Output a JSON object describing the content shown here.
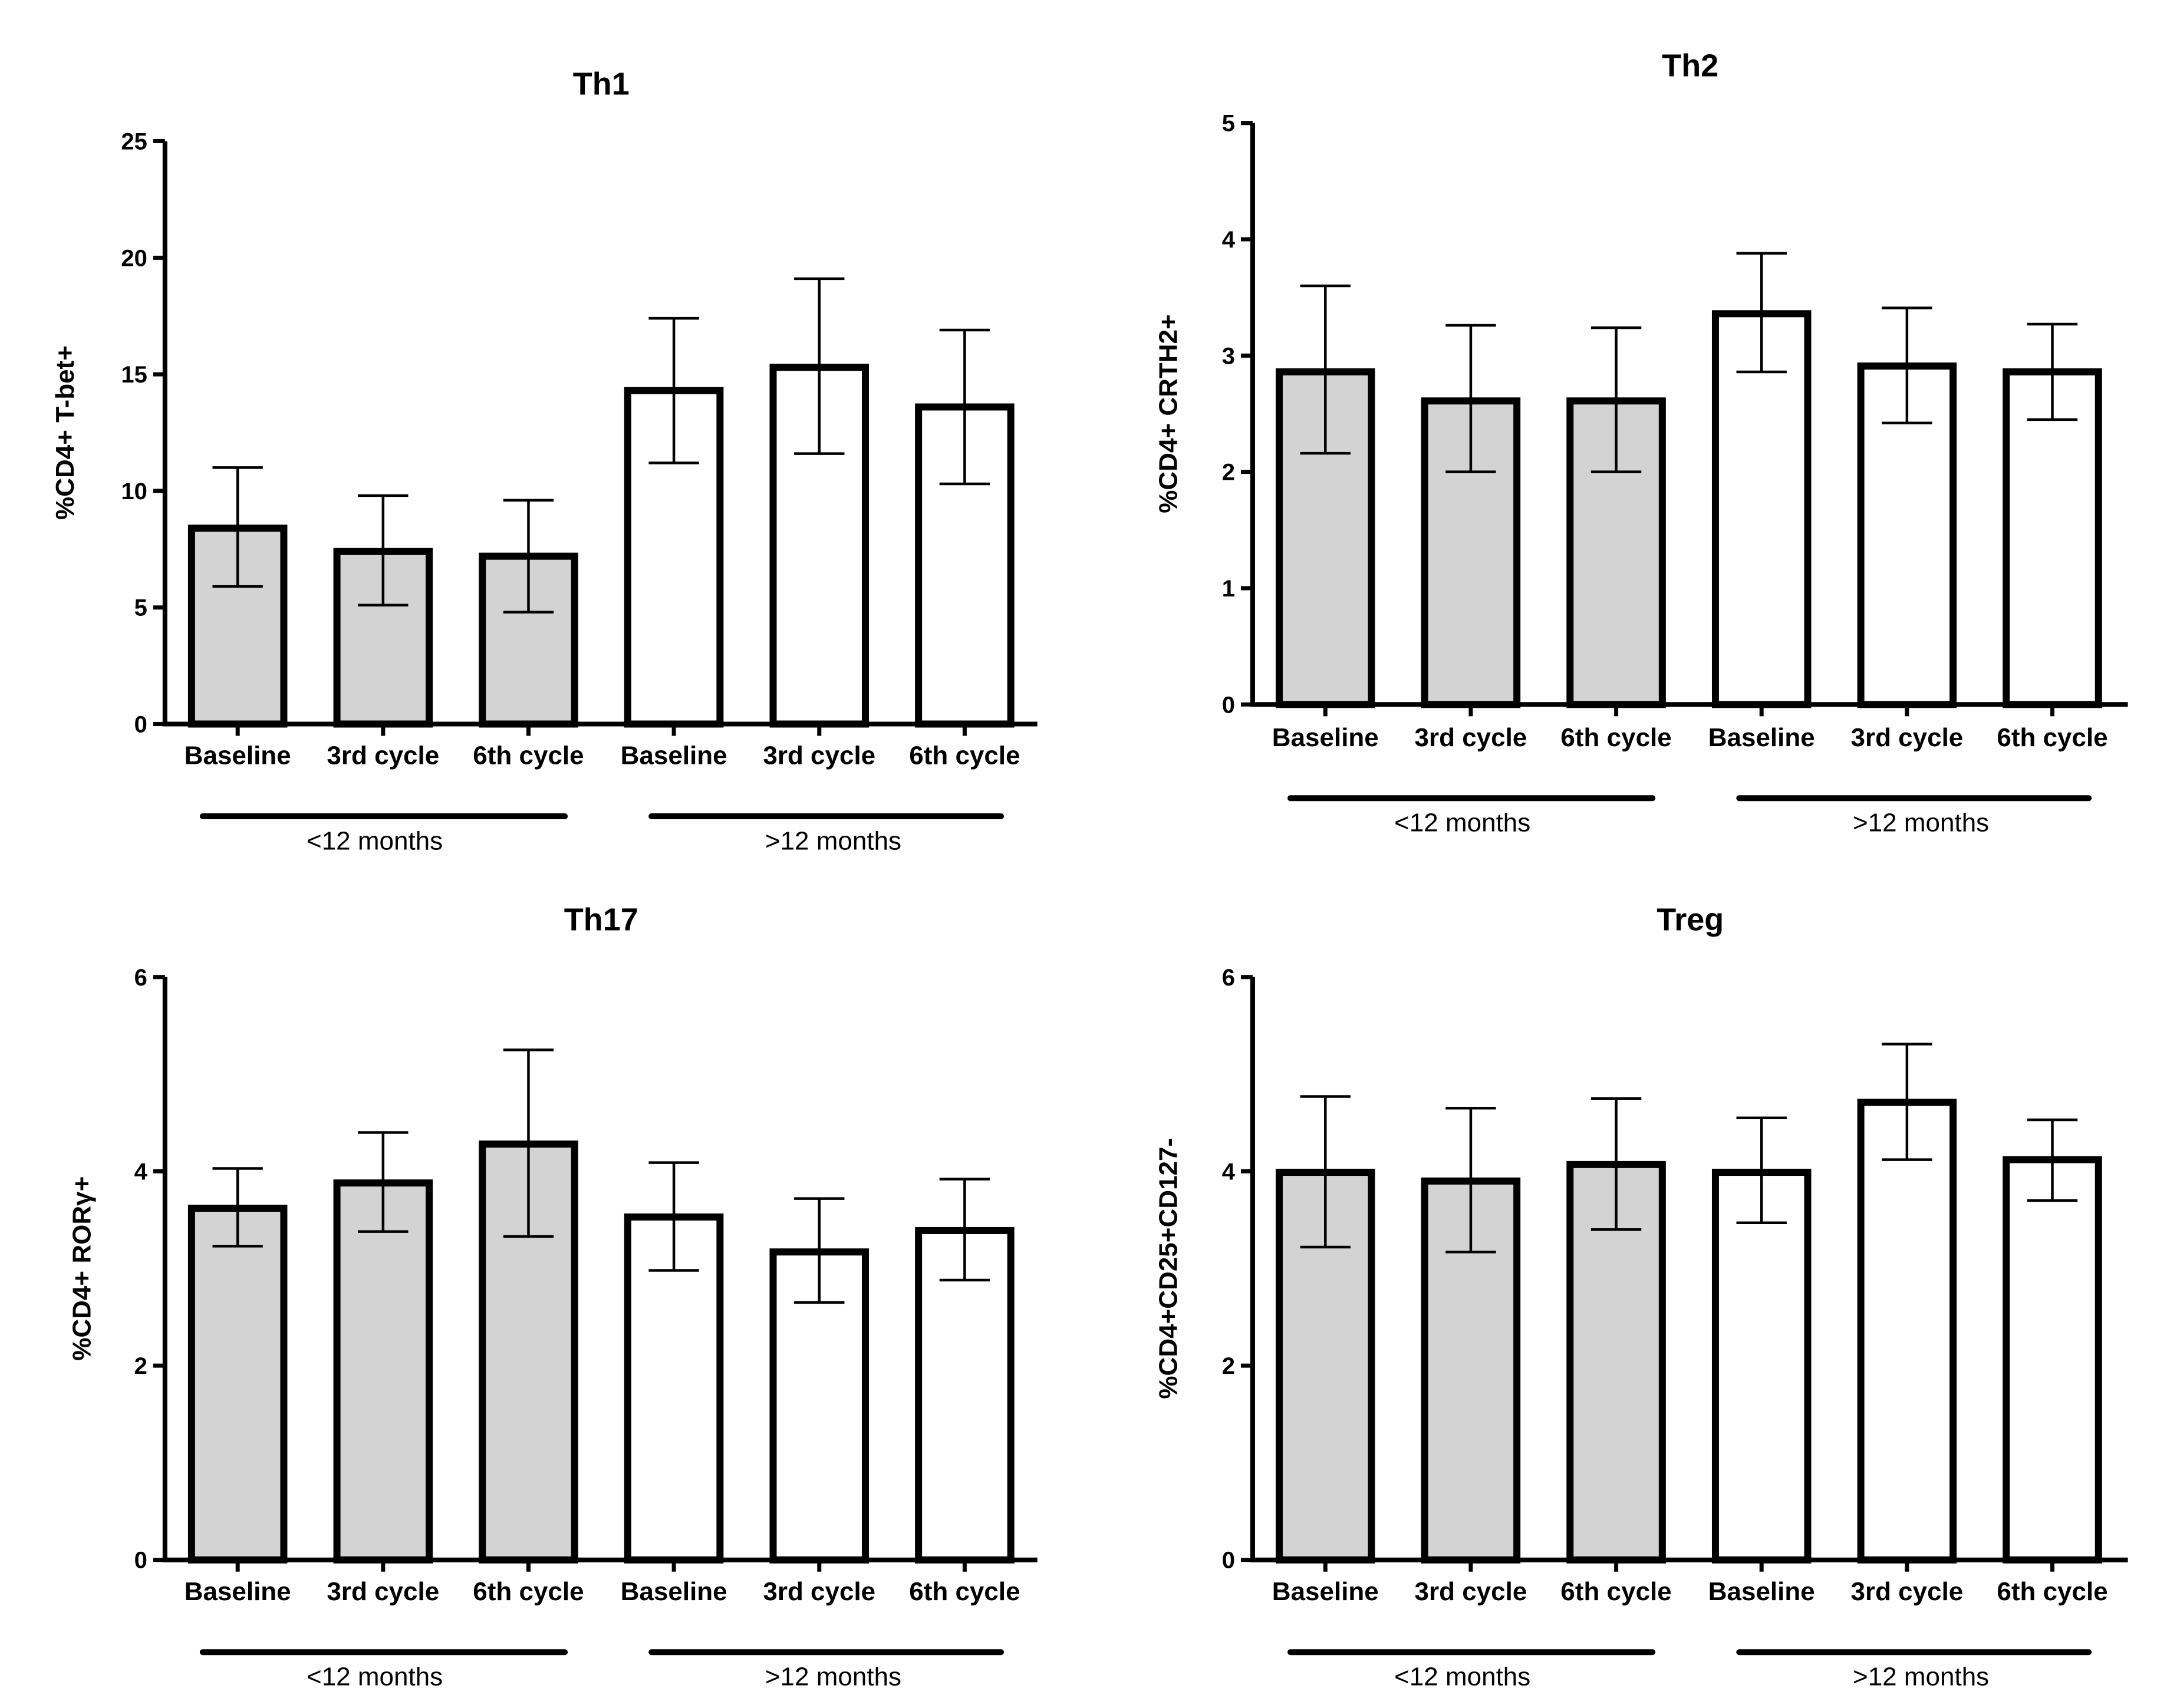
{
  "chart_data": [
    {
      "type": "bar",
      "title": "Th1",
      "ylabel": "%CD4+ T-bet+",
      "xlabel": "",
      "ylim": [
        0,
        25
      ],
      "yticks": [
        0,
        5,
        10,
        15,
        20,
        25
      ],
      "yticklabels": [
        "0",
        "5",
        "10",
        "15",
        "20",
        "25"
      ],
      "categories": [
        "Baseline",
        "3rd cycle",
        "6th cycle",
        "Baseline",
        "3rd cycle",
        "6th cycle"
      ],
      "values": [
        8.4,
        7.4,
        7.2,
        14.3,
        15.3,
        13.6
      ],
      "err_low": [
        5.9,
        5.1,
        4.8,
        11.2,
        11.6,
        10.3
      ],
      "err_high": [
        11.0,
        9.8,
        9.6,
        17.4,
        19.1,
        16.9
      ],
      "groups": [
        {
          "label": "<12 months",
          "indices": [
            0,
            1,
            2
          ],
          "fill": "#d3d3d3"
        },
        {
          "label": ">12 months",
          "indices": [
            3,
            4,
            5
          ],
          "fill": "#ffffff"
        }
      ]
    },
    {
      "type": "bar",
      "title": "Th2",
      "ylabel": "%CD4+ CRTH2+",
      "xlabel": "",
      "ylim": [
        0,
        5
      ],
      "yticks": [
        0,
        1,
        2,
        3,
        4,
        5
      ],
      "yticklabels": [
        "0",
        "1",
        "2",
        "3",
        "4",
        "5"
      ],
      "categories": [
        "Baseline",
        "3rd cycle",
        "6th cycle",
        "Baseline",
        "3rd cycle",
        "6th cycle"
      ],
      "values": [
        2.86,
        2.61,
        2.61,
        3.36,
        2.91,
        2.86
      ],
      "err_low": [
        2.16,
        2.0,
        2.0,
        2.86,
        2.42,
        2.45
      ],
      "err_high": [
        3.6,
        3.26,
        3.24,
        3.88,
        3.41,
        3.27
      ],
      "groups": [
        {
          "label": "<12 months",
          "indices": [
            0,
            1,
            2
          ],
          "fill": "#d3d3d3"
        },
        {
          "label": ">12 months",
          "indices": [
            3,
            4,
            5
          ],
          "fill": "#ffffff"
        }
      ]
    },
    {
      "type": "bar",
      "title": "Th17",
      "ylabel": "%CD4+ RORγ+",
      "xlabel": "",
      "ylim": [
        0,
        6
      ],
      "yticks": [
        0,
        2,
        4,
        6
      ],
      "yticklabels": [
        "0",
        "2",
        "4",
        "6"
      ],
      "categories": [
        "Baseline",
        "3rd cycle",
        "6th cycle",
        "Baseline",
        "3rd cycle",
        "6th cycle"
      ],
      "values": [
        3.62,
        3.88,
        4.28,
        3.53,
        3.17,
        3.39
      ],
      "err_low": [
        3.23,
        3.38,
        3.33,
        2.98,
        2.65,
        2.88
      ],
      "err_high": [
        4.03,
        4.4,
        5.25,
        4.09,
        3.72,
        3.92
      ],
      "groups": [
        {
          "label": "<12 months",
          "indices": [
            0,
            1,
            2
          ],
          "fill": "#d3d3d3"
        },
        {
          "label": ">12 months",
          "indices": [
            3,
            4,
            5
          ],
          "fill": "#ffffff"
        }
      ]
    },
    {
      "type": "bar",
      "title": "Treg",
      "ylabel": "%CD4+CD25+CD127-",
      "xlabel": "",
      "ylim": [
        0,
        6
      ],
      "yticks": [
        0,
        2,
        4,
        6
      ],
      "yticklabels": [
        "0",
        "2",
        "4",
        "6"
      ],
      "categories": [
        "Baseline",
        "3rd cycle",
        "6th cycle",
        "Baseline",
        "3rd cycle",
        "6th cycle"
      ],
      "values": [
        3.99,
        3.9,
        4.07,
        3.99,
        4.71,
        4.12
      ],
      "err_low": [
        3.22,
        3.17,
        3.4,
        3.47,
        4.12,
        3.7
      ],
      "err_high": [
        4.77,
        4.65,
        4.75,
        4.55,
        5.31,
        4.53
      ],
      "groups": [
        {
          "label": "<12 months",
          "indices": [
            0,
            1,
            2
          ],
          "fill": "#d3d3d3"
        },
        {
          "label": ">12 months",
          "indices": [
            3,
            4,
            5
          ],
          "fill": "#ffffff"
        }
      ]
    }
  ]
}
